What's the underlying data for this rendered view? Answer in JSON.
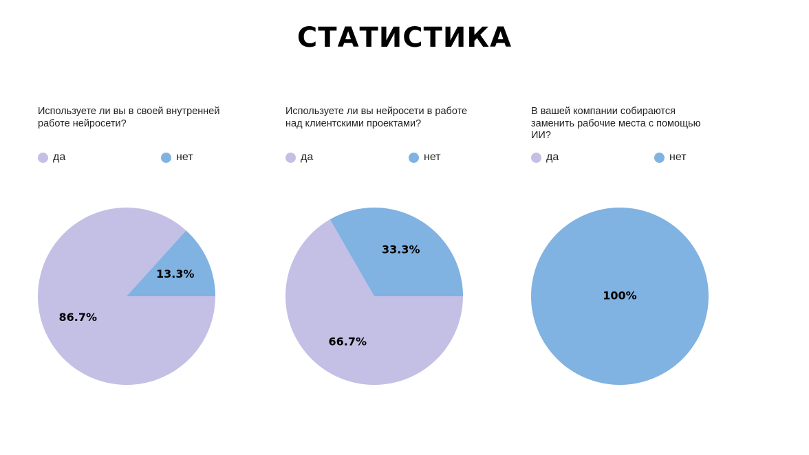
{
  "title": "СТАТИСТИКА",
  "legend": {
    "yes_label": "да",
    "no_label": "нет"
  },
  "colors": {
    "yes": "#c4bfe5",
    "no": "#80b2e2"
  },
  "chart_data": [
    {
      "type": "pie",
      "title": "Используете ли вы в своей внутренней работе нейросети?",
      "labels": [
        "да",
        "нет"
      ],
      "values": [
        86.7,
        13.3
      ],
      "value_labels": [
        "86.7%",
        "13.3%"
      ],
      "legend": "top"
    },
    {
      "type": "pie",
      "title": "Используете ли вы нейросети в работе над клиентскими проектами?",
      "labels": [
        "да",
        "нет"
      ],
      "values": [
        66.7,
        33.3
      ],
      "value_labels": [
        "66.7%",
        "33.3%"
      ],
      "legend": "top"
    },
    {
      "type": "pie",
      "title": "В вашей компании собираются заменить рабочие места с помощью ИИ?",
      "labels": [
        "да",
        "нет"
      ],
      "values": [
        0,
        100
      ],
      "value_labels": [
        "",
        "100%"
      ],
      "legend": "top"
    }
  ]
}
